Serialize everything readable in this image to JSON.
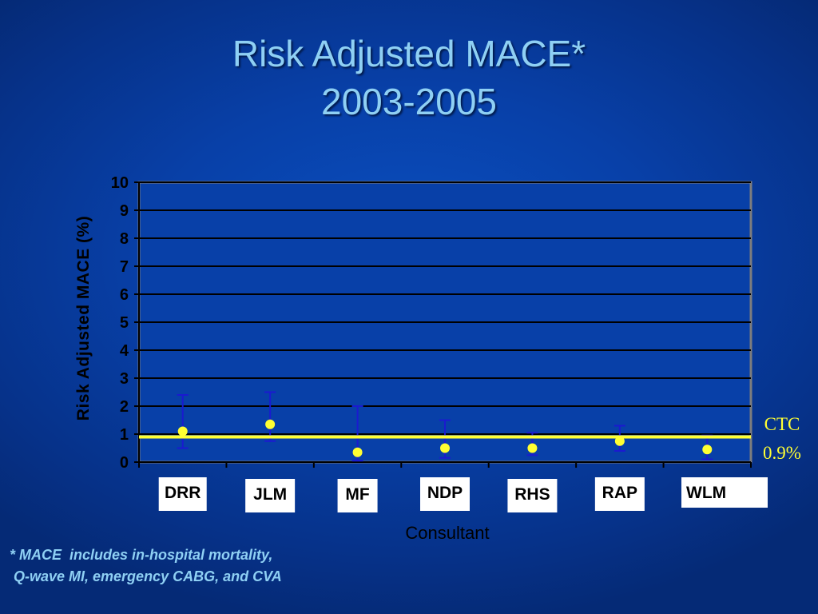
{
  "slide": {
    "title_line1": "Risk Adjusted MACE*",
    "title_line2": "2003-2005",
    "footnote_line1": "* MACE  includes in-hospital mortality,",
    "footnote_line2": " Q-wave MI, emergency CABG, and CVA"
  },
  "colors": {
    "background": "#0840a8",
    "title_text": "#8fd0f4",
    "point": "#ffff33",
    "reference_line": "#ffff33",
    "error_bar": "#1a1ad0"
  },
  "chart_data": {
    "type": "scatter",
    "title": "",
    "xlabel": "Consultant",
    "ylabel": "Risk Adjusted MACE (%)",
    "ylim": [
      0,
      10
    ],
    "yticks": [
      "0",
      "1",
      "2",
      "3",
      "4",
      "5",
      "6",
      "7",
      "8",
      "9",
      "10"
    ],
    "grid": true,
    "categories": [
      "DRR",
      "JLM",
      "MF",
      "NDP",
      "RHS",
      "RAP",
      "WLM"
    ],
    "series": [
      {
        "values": [
          1.1,
          1.35,
          0.35,
          0.5,
          0.5,
          0.75,
          0.45
        ],
        "error_low": [
          0.5,
          0.75,
          0.05,
          0.15,
          0.25,
          0.4,
          0.1
        ],
        "error_high": [
          2.4,
          2.5,
          2.0,
          1.5,
          1.05,
          1.3,
          0.95
        ]
      }
    ],
    "reference_line": {
      "value": 0.9,
      "label_line1": "CTC",
      "label_line2": "0.9%"
    }
  }
}
